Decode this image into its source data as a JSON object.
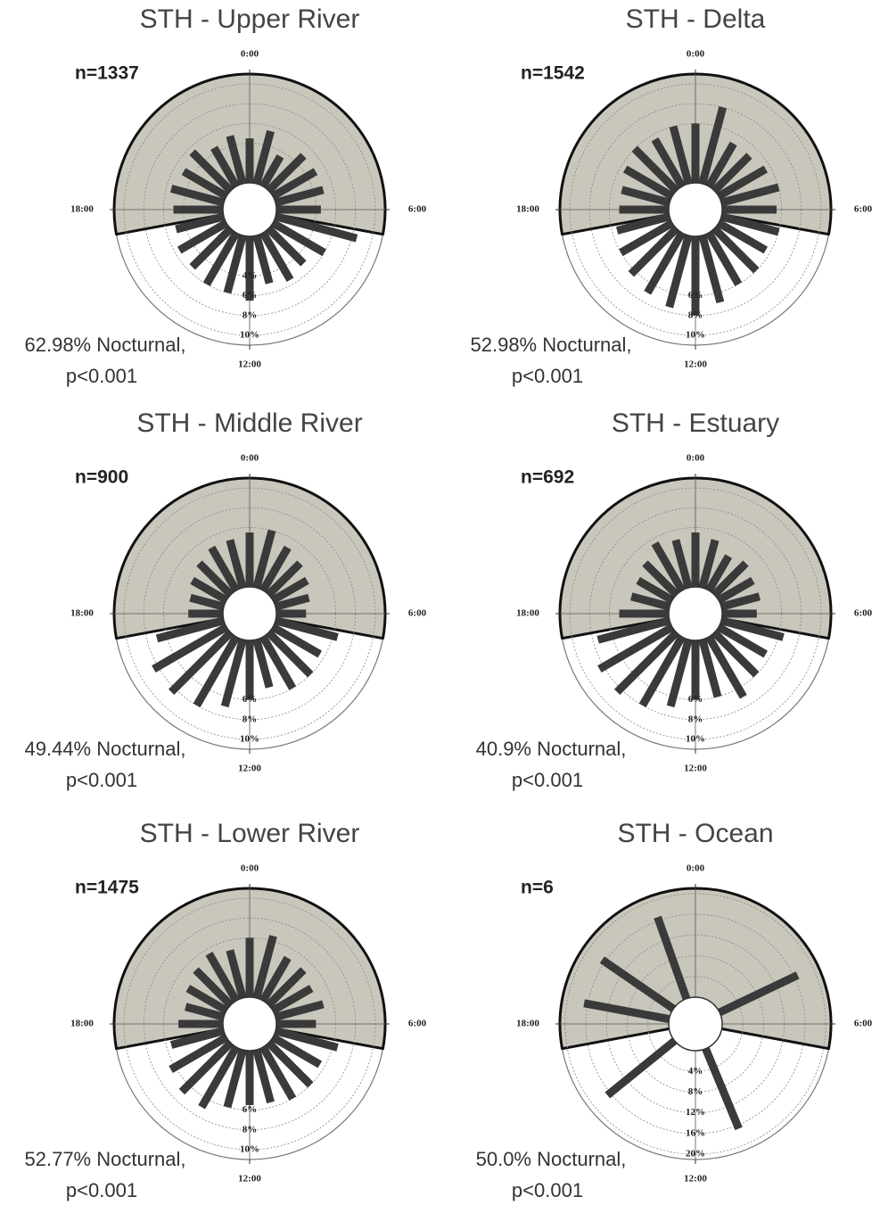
{
  "chart_data": [
    {
      "type": "rose",
      "title": "STH - Upper River",
      "n_label": "n=1337",
      "annotation": [
        "62.98% Nocturnal,",
        "p<0.001"
      ],
      "x": [
        0,
        1,
        2,
        3,
        4,
        5,
        6,
        7,
        8,
        9,
        10,
        11,
        12,
        13,
        14,
        15,
        16,
        17,
        18,
        19,
        20,
        21,
        22,
        23
      ],
      "values": [
        4.5,
        5.5,
        3.5,
        5,
        5,
        5,
        4.5,
        8.5,
        6,
        5,
        5.5,
        5,
        6.5,
        6,
        6,
        5.5,
        5.5,
        5,
        5,
        5.5,
        5,
        5.5,
        4.5,
        5
      ],
      "xlim": [
        0,
        24
      ],
      "xticks": [
        {
          "value": 0,
          "label": "0:00"
        },
        {
          "value": 6,
          "label": "6:00"
        },
        {
          "value": 12,
          "label": "12:00"
        },
        {
          "value": 18,
          "label": "18:00"
        }
      ],
      "ylim": [
        0,
        11
      ],
      "yticks": [
        {
          "value": 4,
          "label": "4%"
        },
        {
          "value": 6,
          "label": "6%"
        },
        {
          "value": 8,
          "label": "8%"
        },
        {
          "value": 10,
          "label": "10%"
        }
      ],
      "night": [
        17.3,
        6.7
      ],
      "color": "#3a3a3a"
    },
    {
      "type": "rose",
      "title": "STH - Delta",
      "n_label": "n=1542",
      "annotation": [
        "52.98% Nocturnal,",
        "p<0.001"
      ],
      "x": [
        0,
        1,
        2,
        3,
        4,
        5,
        6,
        7,
        8,
        9,
        10,
        11,
        12,
        13,
        14,
        15,
        16,
        17,
        18,
        19,
        20,
        21,
        22,
        23
      ],
      "values": [
        6,
        8,
        5,
        5,
        5.5,
        6,
        5.5,
        6,
        5.5,
        6,
        6,
        7,
        8,
        7.5,
        7,
        6.5,
        6,
        5.5,
        5,
        5,
        5.5,
        6,
        5.5,
        6
      ],
      "xlim": [
        0,
        24
      ],
      "xticks": [
        {
          "value": 0,
          "label": "0:00"
        },
        {
          "value": 6,
          "label": "6:00"
        },
        {
          "value": 12,
          "label": "12:00"
        },
        {
          "value": 18,
          "label": "18:00"
        }
      ],
      "ylim": [
        0,
        11
      ],
      "yticks": [
        {
          "value": 6,
          "label": "6%"
        },
        {
          "value": 8,
          "label": "8%"
        },
        {
          "value": 10,
          "label": "10%"
        }
      ],
      "night": [
        17.3,
        6.7
      ],
      "color": "#3a3a3a"
    },
    {
      "type": "rose",
      "title": "STH - Middle River",
      "n_label": "n=900",
      "annotation": [
        "49.44% Nocturnal,",
        "p<0.001"
      ],
      "x": [
        0,
        1,
        2,
        3,
        4,
        5,
        6,
        7,
        8,
        9,
        10,
        11,
        12,
        13,
        14,
        15,
        16,
        17,
        18,
        19,
        20,
        21,
        22,
        23
      ],
      "values": [
        5.5,
        6,
        5,
        4.5,
        4,
        3.5,
        3,
        6.5,
        5.5,
        6,
        6,
        5,
        6,
        7,
        8,
        8.5,
        8.5,
        7,
        3.5,
        3.5,
        4,
        4.5,
        5,
        5
      ],
      "xlim": [
        0,
        24
      ],
      "xticks": [
        {
          "value": 0,
          "label": "0:00"
        },
        {
          "value": 6,
          "label": "6:00"
        },
        {
          "value": 12,
          "label": "12:00"
        },
        {
          "value": 18,
          "label": "18:00"
        }
      ],
      "ylim": [
        0,
        11
      ],
      "yticks": [
        {
          "value": 6,
          "label": "6%"
        },
        {
          "value": 8,
          "label": "8%"
        },
        {
          "value": 10,
          "label": "10%"
        }
      ],
      "night": [
        17.3,
        6.7
      ],
      "color": "#3a3a3a"
    },
    {
      "type": "rose",
      "title": "STH - Estuary",
      "n_label": "n=692",
      "annotation": [
        "40.9% Nocturnal,",
        "p<0.001"
      ],
      "x": [
        0,
        1,
        2,
        3,
        4,
        5,
        6,
        7,
        8,
        9,
        10,
        11,
        12,
        13,
        14,
        15,
        16,
        17,
        18,
        19,
        20,
        21,
        22,
        23
      ],
      "values": [
        5.5,
        5,
        4,
        4.5,
        4,
        4,
        3.5,
        6.5,
        5.5,
        6,
        7,
        6,
        6,
        7,
        8,
        8.5,
        8.5,
        7.5,
        5,
        4,
        4,
        4.5,
        5.5,
        5
      ],
      "xlim": [
        0,
        24
      ],
      "xticks": [
        {
          "value": 0,
          "label": "0:00"
        },
        {
          "value": 6,
          "label": "6:00"
        },
        {
          "value": 12,
          "label": "12:00"
        },
        {
          "value": 18,
          "label": "18:00"
        }
      ],
      "ylim": [
        0,
        11
      ],
      "yticks": [
        {
          "value": 6,
          "label": "6%"
        },
        {
          "value": 8,
          "label": "8%"
        },
        {
          "value": 10,
          "label": "10%"
        }
      ],
      "night": [
        17.3,
        6.7
      ],
      "color": "#3a3a3a"
    },
    {
      "type": "rose",
      "title": "STH - Lower River",
      "n_label": "n=1475",
      "annotation": [
        "52.77% Nocturnal,",
        "p<0.001"
      ],
      "x": [
        0,
        1,
        2,
        3,
        4,
        5,
        6,
        7,
        8,
        9,
        10,
        11,
        12,
        13,
        14,
        15,
        16,
        17,
        18,
        19,
        20,
        21,
        22,
        23
      ],
      "values": [
        6,
        6.5,
        5,
        5,
        4.5,
        5,
        4,
        6.5,
        5.5,
        6,
        6,
        5.5,
        5.5,
        6,
        7,
        7,
        6.5,
        5.5,
        4.5,
        4,
        4.5,
        5,
        5.5,
        5
      ],
      "xlim": [
        0,
        24
      ],
      "xticks": [
        {
          "value": 0,
          "label": "0:00"
        },
        {
          "value": 6,
          "label": "6:00"
        },
        {
          "value": 12,
          "label": "12:00"
        },
        {
          "value": 18,
          "label": "18:00"
        }
      ],
      "ylim": [
        0,
        11
      ],
      "yticks": [
        {
          "value": 6,
          "label": "6%"
        },
        {
          "value": 8,
          "label": "8%"
        },
        {
          "value": 10,
          "label": "10%"
        }
      ],
      "night": [
        17.3,
        6.7
      ],
      "color": "#3a3a3a"
    },
    {
      "type": "rose",
      "title": "STH - Ocean",
      "n_label": "n=6",
      "annotation": [
        "50.0% Nocturnal,",
        "p<0.001"
      ],
      "x": [
        22.7,
        20.3,
        18.7,
        4.3,
        10.5,
        15.4
      ],
      "values": [
        16.7,
        16.7,
        16.7,
        16.7,
        16.7,
        16.7
      ],
      "xlim": [
        0,
        24
      ],
      "xticks": [
        {
          "value": 0,
          "label": "0:00"
        },
        {
          "value": 6,
          "label": "6:00"
        },
        {
          "value": 12,
          "label": "12:00"
        },
        {
          "value": 18,
          "label": "18:00"
        }
      ],
      "ylim": [
        0,
        21
      ],
      "yticks": [
        {
          "value": 4,
          "label": "4%"
        },
        {
          "value": 8,
          "label": "8%"
        },
        {
          "value": 12,
          "label": "12%"
        },
        {
          "value": 16,
          "label": "16%"
        },
        {
          "value": 20,
          "label": "20%"
        }
      ],
      "night": [
        17.3,
        6.7
      ],
      "color": "#3a3a3a"
    }
  ]
}
